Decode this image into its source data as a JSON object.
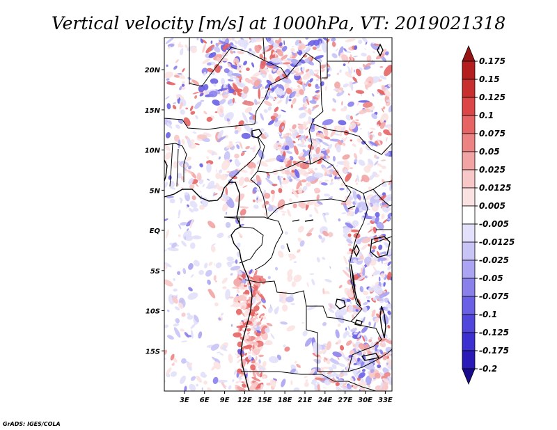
{
  "title": "Vertical velocity [m/s] at 1000hPa, VT: 2019021318",
  "credit": "GrADS: IGES/COLA",
  "map": {
    "variable": "Vertical velocity",
    "units": "m/s",
    "level": "1000hPa",
    "valid_time": "2019021318",
    "lon_range": [
      0,
      34
    ],
    "lat_range": [
      -20,
      24
    ],
    "lon_ticks": [
      {
        "value": 3,
        "label": "3E"
      },
      {
        "value": 6,
        "label": "6E"
      },
      {
        "value": 9,
        "label": "9E"
      },
      {
        "value": 12,
        "label": "12E"
      },
      {
        "value": 15,
        "label": "15E"
      },
      {
        "value": 18,
        "label": "18E"
      },
      {
        "value": 21,
        "label": "21E"
      },
      {
        "value": 24,
        "label": "24E"
      },
      {
        "value": 27,
        "label": "27E"
      },
      {
        "value": 30,
        "label": "30E"
      },
      {
        "value": 33,
        "label": "33E"
      }
    ],
    "lat_ticks": [
      {
        "value": 20,
        "label": "20N"
      },
      {
        "value": 15,
        "label": "15N"
      },
      {
        "value": 10,
        "label": "10N"
      },
      {
        "value": 5,
        "label": "5N"
      },
      {
        "value": 0,
        "label": "EQ"
      },
      {
        "value": -5,
        "label": "5S"
      },
      {
        "value": -10,
        "label": "10S"
      },
      {
        "value": -15,
        "label": "15S"
      }
    ],
    "features": [
      {
        "name": "Gulf of Guinea coast",
        "type": "coast"
      },
      {
        "name": "Lake Chad",
        "type": "lake"
      },
      {
        "name": "Lake Victoria",
        "type": "lake"
      },
      {
        "name": "Lake Tanganyika",
        "type": "lake"
      },
      {
        "name": "Lake Malawi",
        "type": "lake"
      }
    ]
  },
  "colorbar": {
    "levels": [
      "-0.2",
      "-0.175",
      "-0.125",
      "-0.1",
      "-0.075",
      "-0.05",
      "-0.025",
      "-0.0125",
      "-0.005",
      "0.005",
      "0.0125",
      "0.025",
      "0.05",
      "0.075",
      "0.1",
      "0.125",
      "0.15",
      "0.175"
    ],
    "colors": [
      "#1a0a8c",
      "#2a1ab8",
      "#3c30d0",
      "#5046dc",
      "#6a60e6",
      "#8a80ec",
      "#aaa4f2",
      "#c8c4f6",
      "#e2e0fa",
      "#ffffff",
      "#fbe2e2",
      "#f8c8c8",
      "#f2a4a4",
      "#ec8282",
      "#e66464",
      "#dc4646",
      "#c83030",
      "#b41e1e",
      "#961414"
    ]
  },
  "colors": {
    "positive": "#e08080",
    "negative": "#7878dc",
    "frame": "#000000"
  }
}
